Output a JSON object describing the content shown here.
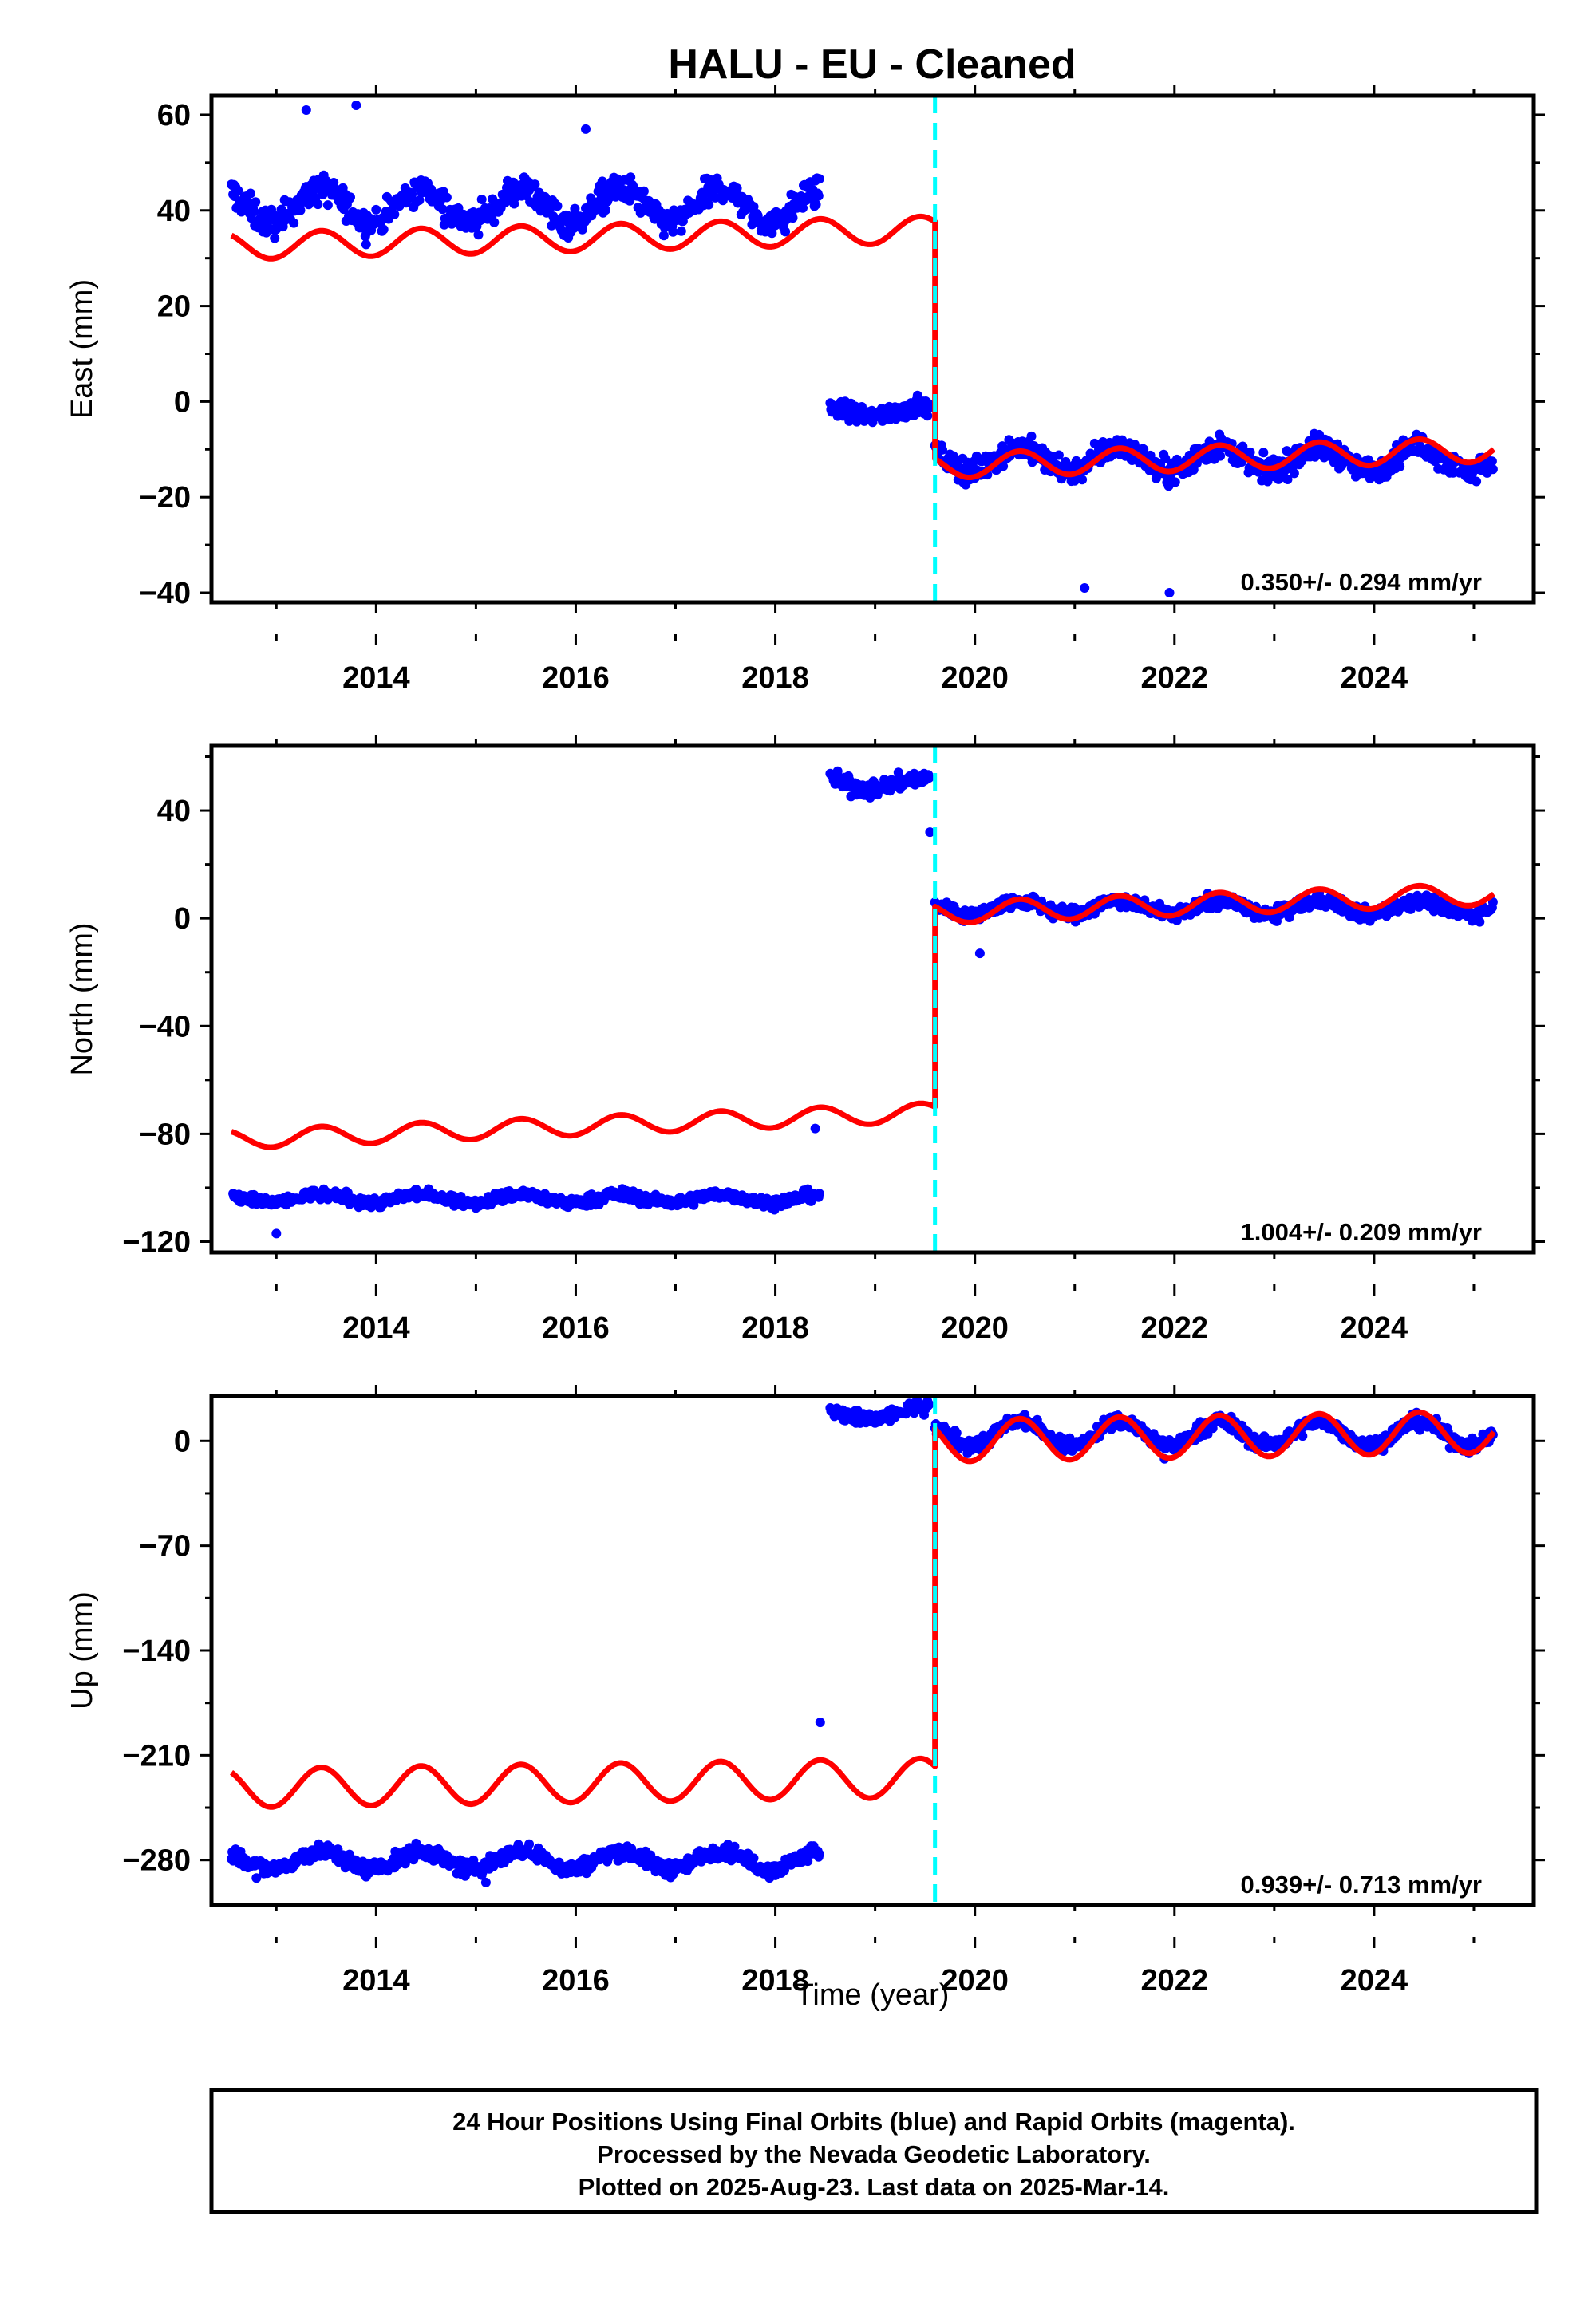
{
  "title": "HALU  - EU - Cleaned",
  "xlabel": "Time (year)",
  "footer": {
    "line1": "24 Hour Positions Using Final Orbits (blue) and Rapid Orbits (magenta).",
    "line2": "Processed by the Nevada Geodetic Laboratory.",
    "line3": "Plotted on 2025-Aug-23. Last data on 2025-Mar-14."
  },
  "colors": {
    "data": "#0000ff",
    "model": "#ff0000",
    "offset_line": "#00ffff",
    "axes": "#000000"
  },
  "chart_data": [
    {
      "type": "scatter",
      "ylabel": "East (mm)",
      "rate_label": "0.350+/- 0.294 mm/yr",
      "xlim": [
        2012.35,
        2025.6
      ],
      "ylim": [
        -42,
        64
      ],
      "x_ticks": [
        2014,
        2016,
        2018,
        2020,
        2022,
        2024
      ],
      "y_ticks": [
        -40,
        -20,
        0,
        20,
        40,
        60
      ],
      "offset_epoch": 2019.6,
      "segments": [
        {
          "x_start": 2012.55,
          "x_end": 2018.45,
          "data_mean": 41,
          "data_scatter": 3,
          "data_amp": 3.5,
          "model_start": 32.5,
          "model_end": 34.5,
          "model_amp": 2.8
        },
        {
          "x_start": 2018.55,
          "x_end": 2019.55,
          "data_mean": -2,
          "data_scatter": 2,
          "data_amp": 1,
          "model_start": 35,
          "model_end": 36,
          "model_amp": 2.8
        },
        {
          "x_start": 2019.6,
          "x_end": 2025.2,
          "data_mean": -12,
          "data_scatter": 2.5,
          "data_amp": 2.5,
          "model_start": -13.5,
          "model_end": -10,
          "model_amp": 2.6
        }
      ],
      "outliers": [
        [
          2013.3,
          61
        ],
        [
          2013.8,
          62
        ],
        [
          2016.1,
          57
        ],
        [
          2021.1,
          -39
        ],
        [
          2021.95,
          -40
        ]
      ]
    },
    {
      "type": "scatter",
      "ylabel": "North (mm)",
      "rate_label": "1.004+/- 0.209 mm/yr",
      "xlim": [
        2012.35,
        2025.6
      ],
      "ylim": [
        -124,
        64
      ],
      "x_ticks": [
        2014,
        2016,
        2018,
        2020,
        2022,
        2024
      ],
      "y_ticks": [
        -120,
        -80,
        -40,
        0,
        40
      ],
      "offset_epoch": 2019.6,
      "segments": [
        {
          "x_start": 2012.55,
          "x_end": 2018.45,
          "data_mean": -104,
          "data_scatter": 2,
          "data_amp": 1.5,
          "model_start": -82,
          "model_end": -76,
          "model_amp": 3.5
        },
        {
          "x_start": 2018.55,
          "x_end": 2019.55,
          "data_mean": 50,
          "data_scatter": 3,
          "data_amp": 2,
          "model_start": -76,
          "model_end": -72,
          "model_amp": 3.5
        },
        {
          "x_start": 2019.6,
          "x_end": 2025.2,
          "data_mean": 4,
          "data_scatter": 2.5,
          "data_amp": 2.5,
          "model_start": 2,
          "model_end": 9,
          "model_amp": 4
        }
      ],
      "outliers": [
        [
          2013.0,
          -117
        ],
        [
          2018.4,
          -78
        ],
        [
          2020.05,
          -13
        ],
        [
          2019.55,
          32
        ]
      ]
    },
    {
      "type": "scatter",
      "ylabel": "Up (mm)",
      "rate_label": "0.939+/- 0.713 mm/yr",
      "xlim": [
        2012.35,
        2025.6
      ],
      "ylim": [
        -310,
        30
      ],
      "x_ticks": [
        2014,
        2016,
        2018,
        2020,
        2022,
        2024
      ],
      "y_ticks": [
        -280,
        -210,
        -140,
        -70,
        0
      ],
      "offset_epoch": 2019.6,
      "segments": [
        {
          "x_start": 2012.55,
          "x_end": 2018.45,
          "data_mean": -280,
          "data_scatter": 5,
          "data_amp": 6,
          "model_start": -232,
          "model_end": -228,
          "model_amp": 13
        },
        {
          "x_start": 2018.55,
          "x_end": 2019.55,
          "data_mean": 18,
          "data_scatter": 5,
          "data_amp": 4,
          "model_start": -228,
          "model_end": -225,
          "model_amp": 13
        },
        {
          "x_start": 2019.6,
          "x_end": 2025.2,
          "data_mean": 5,
          "data_scatter": 5,
          "data_amp": 8,
          "model_start": 0,
          "model_end": 6,
          "model_amp": 14
        }
      ],
      "outliers": [
        [
          2018.45,
          -188
        ],
        [
          2012.8,
          -292
        ],
        [
          2015.1,
          -295
        ],
        [
          2021.9,
          -12
        ]
      ]
    }
  ]
}
